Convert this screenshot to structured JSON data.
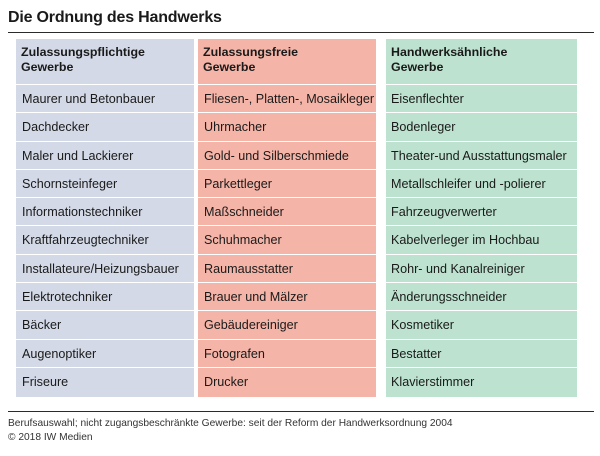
{
  "title": "Die Ordnung des Handwerks",
  "columns": [
    {
      "header": "Zulassungspflichtige\nGewerbe",
      "items": [
        "Maurer und Betonbauer",
        "Dachdecker",
        "Maler und Lackierer",
        "Schornsteinfeger",
        "Informationstechniker",
        "Kraftfahrzeugtechniker",
        "Installateure/Heizungsbauer",
        "Elektrotechniker",
        "Bäcker",
        "Augenoptiker",
        "Friseure"
      ],
      "color": "#d3d9e6"
    },
    {
      "header": "Zulassungsfreie\nGewerbe",
      "items": [
        "Fliesen-, Platten-, Mosaikleger",
        "Uhrmacher",
        "Gold- und Silberschmiede",
        "Parkettleger",
        "Maßschneider",
        "Schuhmacher",
        "Raumausstatter",
        "Brauer und Mälzer",
        "Gebäudereiniger",
        "Fotografen",
        "Drucker"
      ],
      "color": "#f4b4a7"
    },
    {
      "header": "Handwerksähnliche\nGewerbe",
      "items": [
        "Eisenflechter",
        "Bodenleger",
        "Theater-und Ausstattungsmaler",
        "Metallschleifer und -polierer",
        "Fahrzeugverwerter",
        "Kabelverleger im Hochbau",
        "Rohr- und Kanalreiniger",
        "Änderungsschneider",
        "Kosmetiker",
        "Bestatter",
        "Klavierstimmer"
      ],
      "color": "#bde3d0"
    }
  ],
  "footer": {
    "source": "Berufsauswahl; nicht zugangsbeschränkte Gewerbe: seit der Reform der Handwerksordnung 2004",
    "copyright": "© 2018 IW Medien"
  }
}
